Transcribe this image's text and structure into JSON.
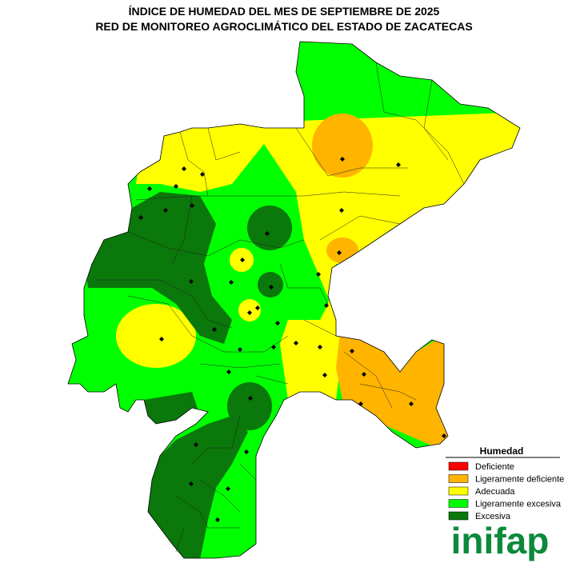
{
  "header": {
    "title_line1": "ÍNDICE DE HUMEDAD DEL MES DE SEPTIEMBRE DE 2025",
    "title_line2": "RED DE MONITOREO AGROCLIMÁTICO DEL ESTADO DE ZACATECAS"
  },
  "legend": {
    "title": "Humedad",
    "items": [
      {
        "label": "Deficiente",
        "color": "#ff0000"
      },
      {
        "label": "Ligeramente deficiente",
        "color": "#ffb400"
      },
      {
        "label": "Adecuada",
        "color": "#ffff00"
      },
      {
        "label": "Ligeramente excesiva",
        "color": "#00ff00"
      },
      {
        "label": "Excesiva",
        "color": "#0a780a"
      }
    ]
  },
  "logo": {
    "text": "inifap"
  }
}
